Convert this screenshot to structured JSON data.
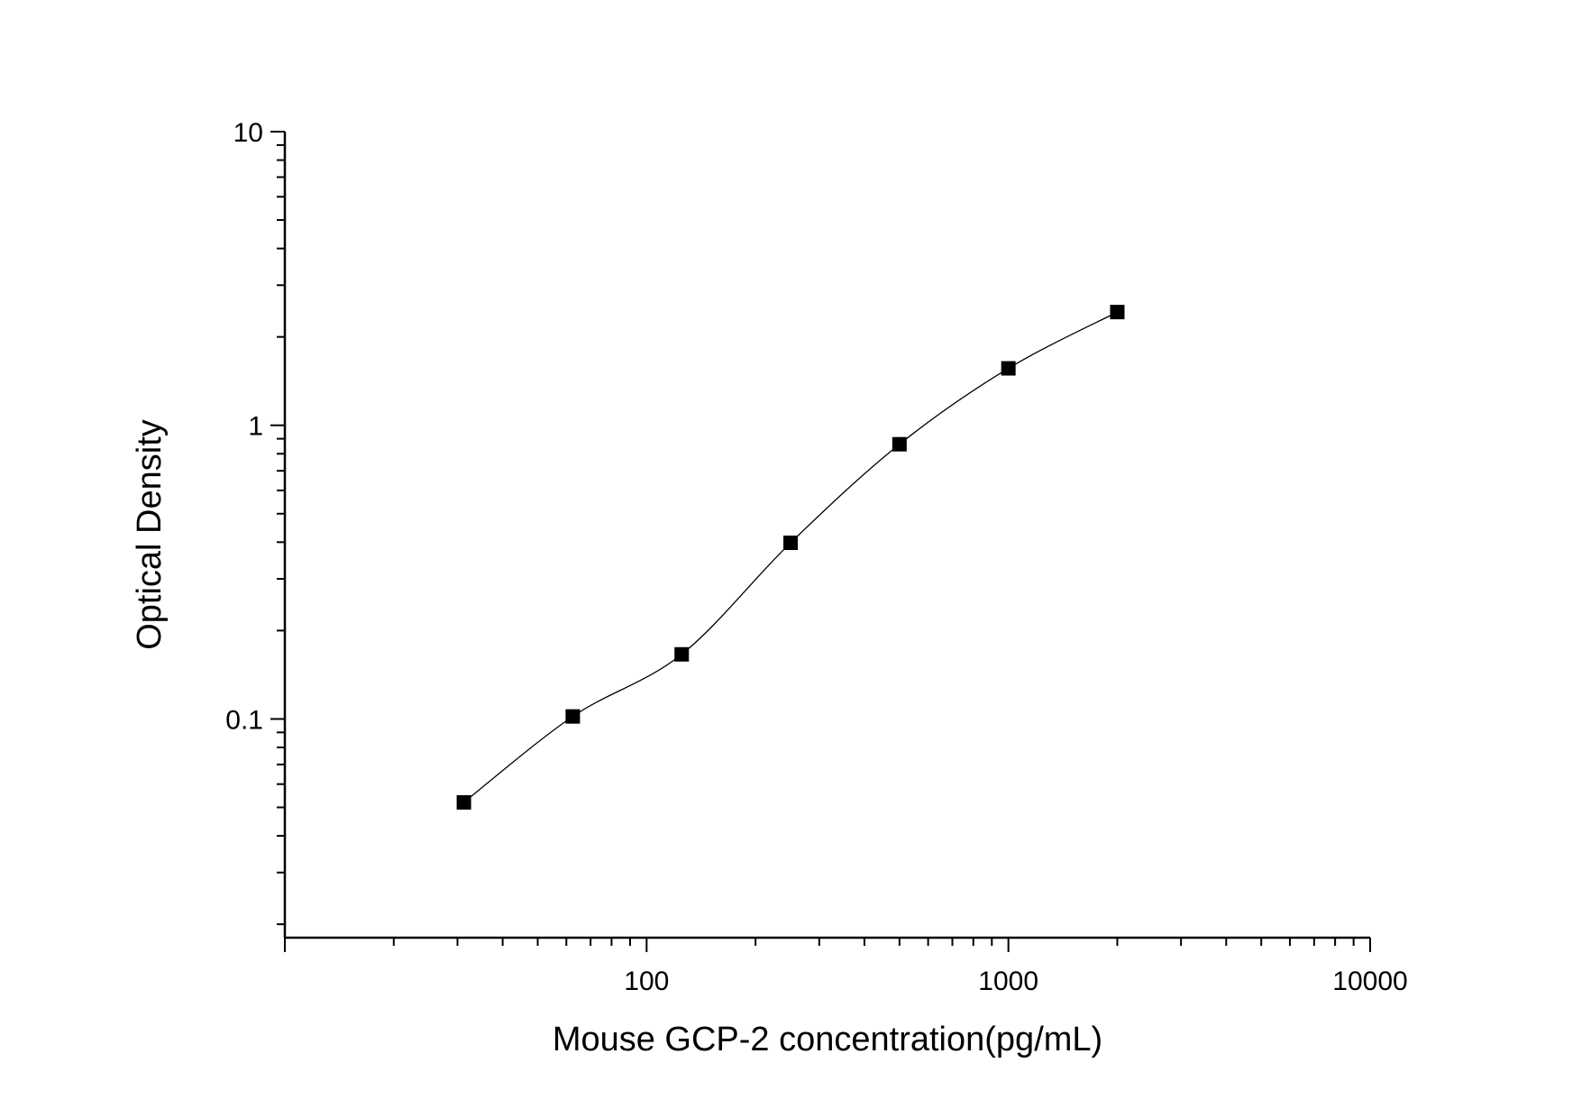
{
  "chart_data": {
    "type": "scatter",
    "xlabel": "Mouse GCP-2 concentration(pg/mL)",
    "ylabel": "Optical Density",
    "xscale": "log",
    "yscale": "log",
    "xlim": [
      10,
      10000
    ],
    "ylim": [
      0.018,
      10
    ],
    "xticks": [
      {
        "value": 100,
        "label": "100"
      },
      {
        "value": 1000,
        "label": "1000"
      },
      {
        "value": 10000,
        "label": "10000"
      }
    ],
    "yticks": [
      {
        "value": 0.1,
        "label": "0.1"
      },
      {
        "value": 1,
        "label": "1"
      },
      {
        "value": 10,
        "label": "10"
      }
    ],
    "grid": false,
    "legend": "none",
    "marker": "square",
    "marker_color": "#000000",
    "curve_color": "#000000",
    "series": [
      {
        "x": [
          31.25,
          62.5,
          125,
          250,
          500,
          1000,
          2000
        ],
        "y": [
          0.052,
          0.102,
          0.166,
          0.398,
          0.862,
          1.563,
          2.43
        ]
      }
    ],
    "fit_curve": "smooth curve through points"
  }
}
